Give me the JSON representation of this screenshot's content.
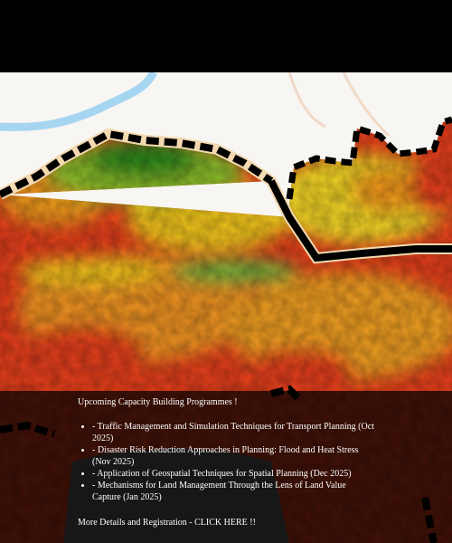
{
  "announcement": {
    "title": "Upcoming Capacity Building Programmes !",
    "items": [
      "- Traffic Management and Simulation Techniques for Transport Planning (Oct 2025)",
      "- Disaster Risk Reduction Approaches in Planning: Flood and Heat Stress (Nov 2025)",
      "- Application of Geospatial Techniques for Spatial Planning (Dec 2025)",
      "- Mechanisms for Land Management Through the Lens of Land Value Capture (Jan 2025)"
    ],
    "link": "More Details and Registration - CLICK HERE !!"
  }
}
